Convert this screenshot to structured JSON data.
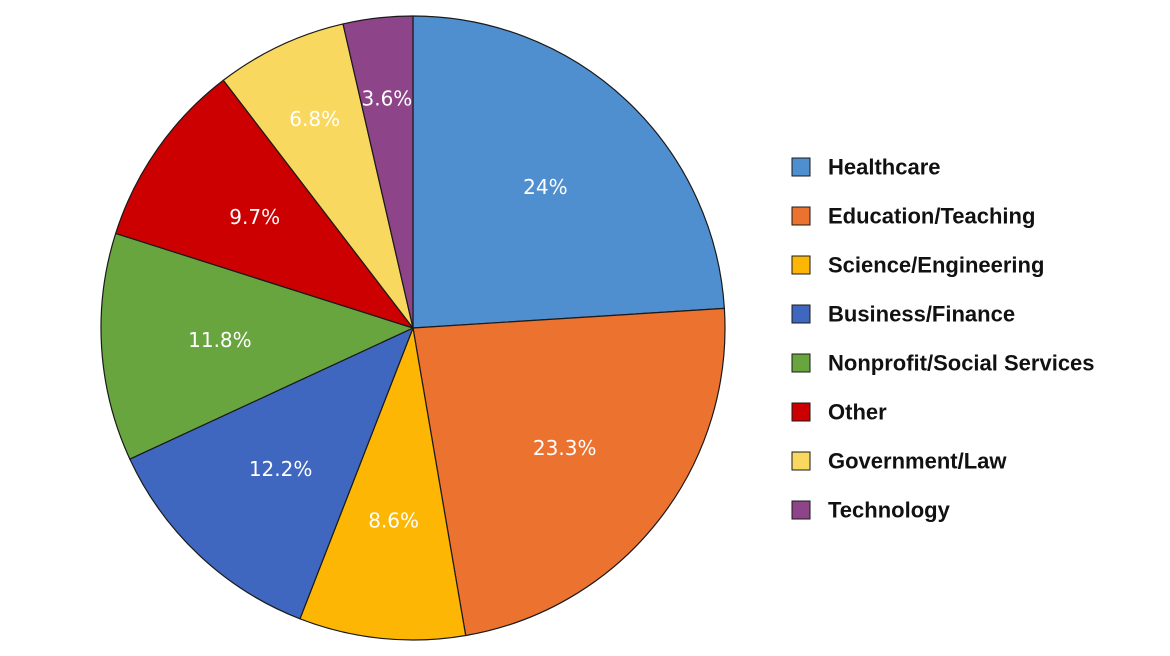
{
  "chart_data": {
    "type": "pie",
    "title": "",
    "slices": [
      {
        "name": "Healthcare",
        "value": 24,
        "label": "24%",
        "color": "#4F8FCF"
      },
      {
        "name": "Education/Teaching",
        "value": 23.3,
        "label": "23.3%",
        "color": "#EB722F"
      },
      {
        "name": "Science/Engineering",
        "value": 8.6,
        "label": "8.6%",
        "color": "#FDB604"
      },
      {
        "name": "Business/Finance",
        "value": 12.2,
        "label": "12.2%",
        "color": "#3F67BF"
      },
      {
        "name": "Nonprofit/Social Services",
        "value": 11.8,
        "label": "11.8%",
        "color": "#68A53F"
      },
      {
        "name": "Other",
        "value": 9.7,
        "label": "9.7%",
        "color": "#CC0000"
      },
      {
        "name": "Government/Law",
        "value": 6.8,
        "label": "6.8%",
        "color": "#F9D85F"
      },
      {
        "name": "Technology",
        "value": 3.6,
        "label": "3.6%",
        "color": "#8E4488"
      }
    ],
    "legend": {
      "position": "right",
      "items": [
        "Healthcare",
        "Education/Teaching",
        "Science/Engineering",
        "Business/Finance",
        "Nonprofit/Social Services",
        "Other",
        "Government/Law",
        "Technology"
      ]
    }
  }
}
